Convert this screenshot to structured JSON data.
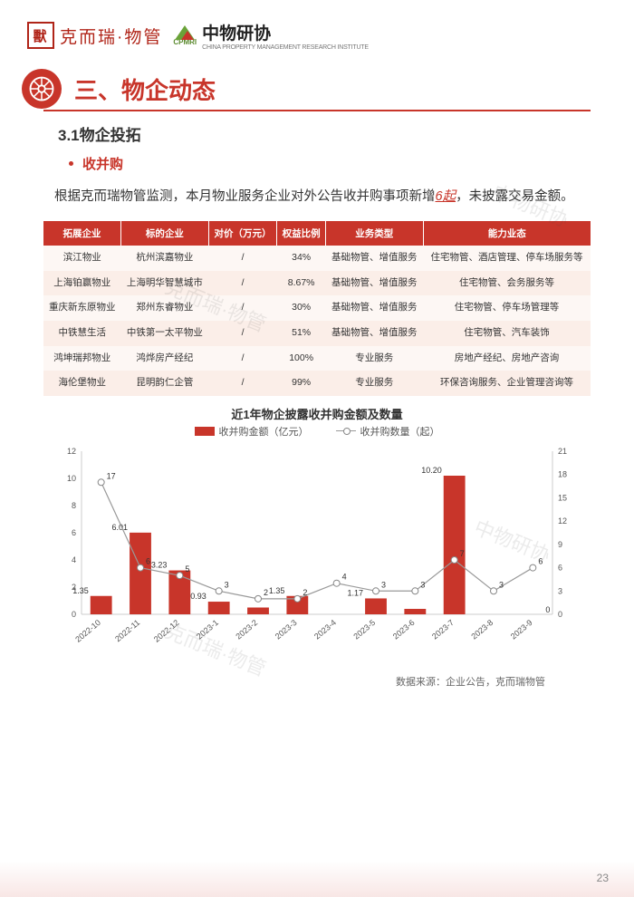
{
  "header": {
    "logo1_text": "克而瑞·物管",
    "logo1_glyph": "獸",
    "logo2_text": "中物研协",
    "logo2_sub": "CHINA PROPERTY MANAGEMENT RESEARCH INSTITUTE",
    "logo2_cpmri": "CPMRI"
  },
  "section": {
    "title": "三、物企动态",
    "subsection": "3.1物企投拓",
    "bullet": "收并购",
    "body_prefix": "根据克而瑞物管监测，本月物业服务企业对外公告收并购事项新增",
    "body_highlight": "6起",
    "body_suffix": "，未披露交易金额。"
  },
  "table": {
    "headers": [
      "拓展企业",
      "标的企业",
      "对价（万元）",
      "权益比例",
      "业务类型",
      "能力业态"
    ],
    "rows": [
      [
        "滨江物业",
        "杭州滨嘉物业",
        "/",
        "34%",
        "基础物管、增值服务",
        "住宅物管、酒店管理、停车场服务等"
      ],
      [
        "上海铂赢物业",
        "上海明华智慧城市",
        "/",
        "8.67%",
        "基础物管、增值服务",
        "住宅物管、会务服务等"
      ],
      [
        "重庆新东原物业",
        "郑州东睿物业",
        "/",
        "30%",
        "基础物管、增值服务",
        "住宅物管、停车场管理等"
      ],
      [
        "中铁慧生活",
        "中铁第一太平物业",
        "/",
        "51%",
        "基础物管、增值服务",
        "住宅物管、汽车装饰"
      ],
      [
        "鸿坤瑞邦物业",
        "鸿烨房产经纪",
        "/",
        "100%",
        "专业服务",
        "房地产经纪、房地产咨询"
      ],
      [
        "海伦堡物业",
        "昆明韵仁企管",
        "/",
        "99%",
        "专业服务",
        "环保咨询服务、企业管理咨询等"
      ]
    ]
  },
  "chart": {
    "title": "近1年物企披露收并购金额及数量",
    "legend_bar": "收并购金额（亿元）",
    "legend_line": "收并购数量（起）",
    "categories": [
      "2022-10",
      "2022-11",
      "2022-12",
      "2023-1",
      "2023-2",
      "2023-3",
      "2023-4",
      "2023-5",
      "2023-6",
      "2023-7",
      "2023-8",
      "2023-9"
    ],
    "bar_values": [
      1.35,
      6.01,
      3.23,
      0.93,
      0.5,
      1.35,
      0,
      1.17,
      0.4,
      10.2,
      0,
      0
    ],
    "bar_labels": [
      "1.35",
      "6.01",
      "3.23",
      "0.93",
      "",
      "1.35",
      "",
      "1.17",
      "",
      "10.20",
      "",
      ""
    ],
    "line_values": [
      17,
      6,
      5,
      3,
      2,
      2,
      4,
      3,
      3,
      7,
      3,
      6
    ],
    "line_labels": [
      "17",
      "6",
      "5",
      "3",
      "2",
      "2",
      "4",
      "3",
      "3",
      "7",
      "3",
      "6"
    ],
    "right_extra_label": "0",
    "y_left": {
      "min": 0,
      "max": 12,
      "step": 2
    },
    "y_right": {
      "min": 0,
      "max": 21,
      "step": 3
    },
    "bar_color": "#c8352a",
    "line_color": "#999999",
    "marker_fill": "#ffffff",
    "marker_stroke": "#888888",
    "axis_color": "#cccccc",
    "text_color": "#555555",
    "label_fontsize": 9
  },
  "source": "数据来源：企业公告，克而瑞物管",
  "page_number": "23"
}
